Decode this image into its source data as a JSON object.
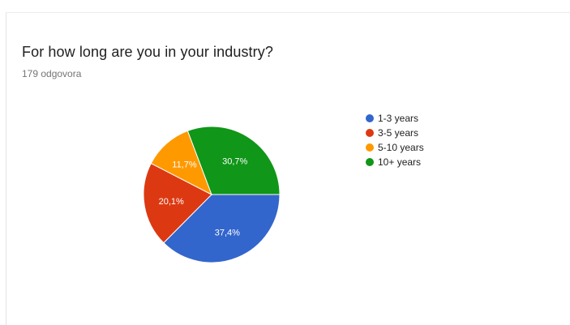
{
  "form": {
    "question": "For how long are you in your industry?",
    "responses": "179 odgovora"
  },
  "chart_data": {
    "type": "pie",
    "title": "For how long are you in your industry?",
    "subtitle": "179 odgovora",
    "legend_position": "right",
    "slices": [
      {
        "label": "1-3 years",
        "value": 37.4,
        "display": "37,4%",
        "color": "#3366cc"
      },
      {
        "label": "3-5 years",
        "value": 20.1,
        "display": "20,1%",
        "color": "#dc3912"
      },
      {
        "label": "5-10 years",
        "value": 11.7,
        "display": "11,7%",
        "color": "#ff9900"
      },
      {
        "label": "10+ years",
        "value": 30.7,
        "display": "30,7%",
        "color": "#109618"
      }
    ]
  }
}
